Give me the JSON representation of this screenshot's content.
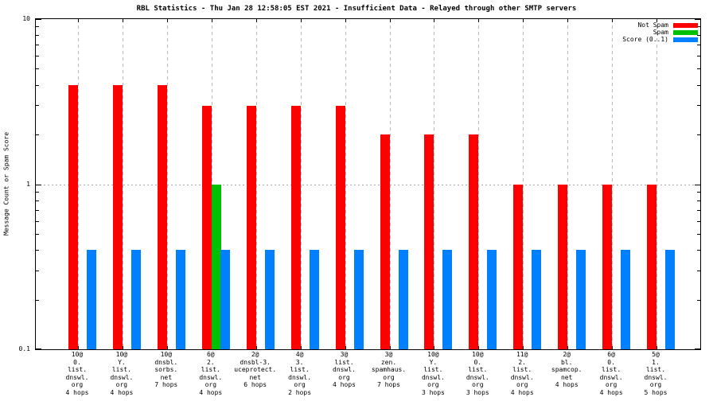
{
  "chart_data": {
    "type": "bar",
    "title": "RBL Statistics - Thu Jan 28 12:58:05 EST 2021 - Insufficient Data - Relayed through other SMTP servers",
    "ylabel": "Message Count or Spam Score",
    "y_axis": {
      "scale": "log",
      "min": 0.1,
      "max": 10,
      "major_ticks": [
        10,
        1,
        0.1
      ],
      "tick_labels": [
        "10",
        "1",
        "0.1"
      ]
    },
    "grid": {
      "horizontal_lines_at": [
        1
      ],
      "vertical_lines": "at every category tick",
      "style": "dashed-gray"
    },
    "legend": {
      "position": "top-right-inside",
      "entries": [
        {
          "label": "Not Spam",
          "color": "#ff0000"
        },
        {
          "label": "Spam",
          "color": "#00c000"
        },
        {
          "label": "Score (0..1)",
          "color": "#0080ff"
        }
      ]
    },
    "categories": [
      [
        "10@",
        "0.",
        "list.",
        "dnswl.",
        "org",
        "4 hops"
      ],
      [
        "10@",
        "Y.",
        "list.",
        "dnswl.",
        "org",
        "4 hops"
      ],
      [
        "10@",
        "dnsbl.",
        "sorbs.",
        "net",
        "7 hops"
      ],
      [
        "6@",
        "2.",
        "list.",
        "dnswl.",
        "org",
        "4 hops"
      ],
      [
        "2@",
        "dnsbl-3.",
        "uceprotect.",
        "net",
        "6 hops"
      ],
      [
        "4@",
        "3.",
        "list.",
        "dnswl.",
        "org",
        "2 hops"
      ],
      [
        "3@",
        "list.",
        "dnswl.",
        "org",
        "4 hops"
      ],
      [
        "3@",
        "zen.",
        "spamhaus.",
        "org",
        "7 hops"
      ],
      [
        "10@",
        "Y.",
        "list.",
        "dnswl.",
        "org",
        "3 hops"
      ],
      [
        "10@",
        "0.",
        "list.",
        "dnswl.",
        "org",
        "3 hops"
      ],
      [
        "11@",
        "2.",
        "list.",
        "dnswl.",
        "org",
        "4 hops"
      ],
      [
        "2@",
        "bl.",
        "spamcop.",
        "net",
        "4 hops"
      ],
      [
        "6@",
        "0.",
        "list.",
        "dnswl.",
        "org",
        "4 hops"
      ],
      [
        "5@",
        "1.",
        "list.",
        "dnswl.",
        "org",
        "5 hops"
      ]
    ],
    "series": [
      {
        "name": "Not Spam",
        "color": "#ff0000",
        "values": [
          4,
          4,
          4,
          3,
          3,
          3,
          3,
          2,
          2,
          2,
          1,
          1,
          1,
          1
        ]
      },
      {
        "name": "Spam",
        "color": "#00c000",
        "values": [
          null,
          null,
          null,
          1,
          null,
          null,
          null,
          null,
          null,
          null,
          null,
          null,
          null,
          null
        ]
      },
      {
        "name": "Score (0..1)",
        "color": "#0080ff",
        "values": [
          0.4,
          0.4,
          0.4,
          0.4,
          0.4,
          0.4,
          0.4,
          0.4,
          0.4,
          0.4,
          0.4,
          0.4,
          0.4,
          0.4
        ]
      }
    ]
  }
}
